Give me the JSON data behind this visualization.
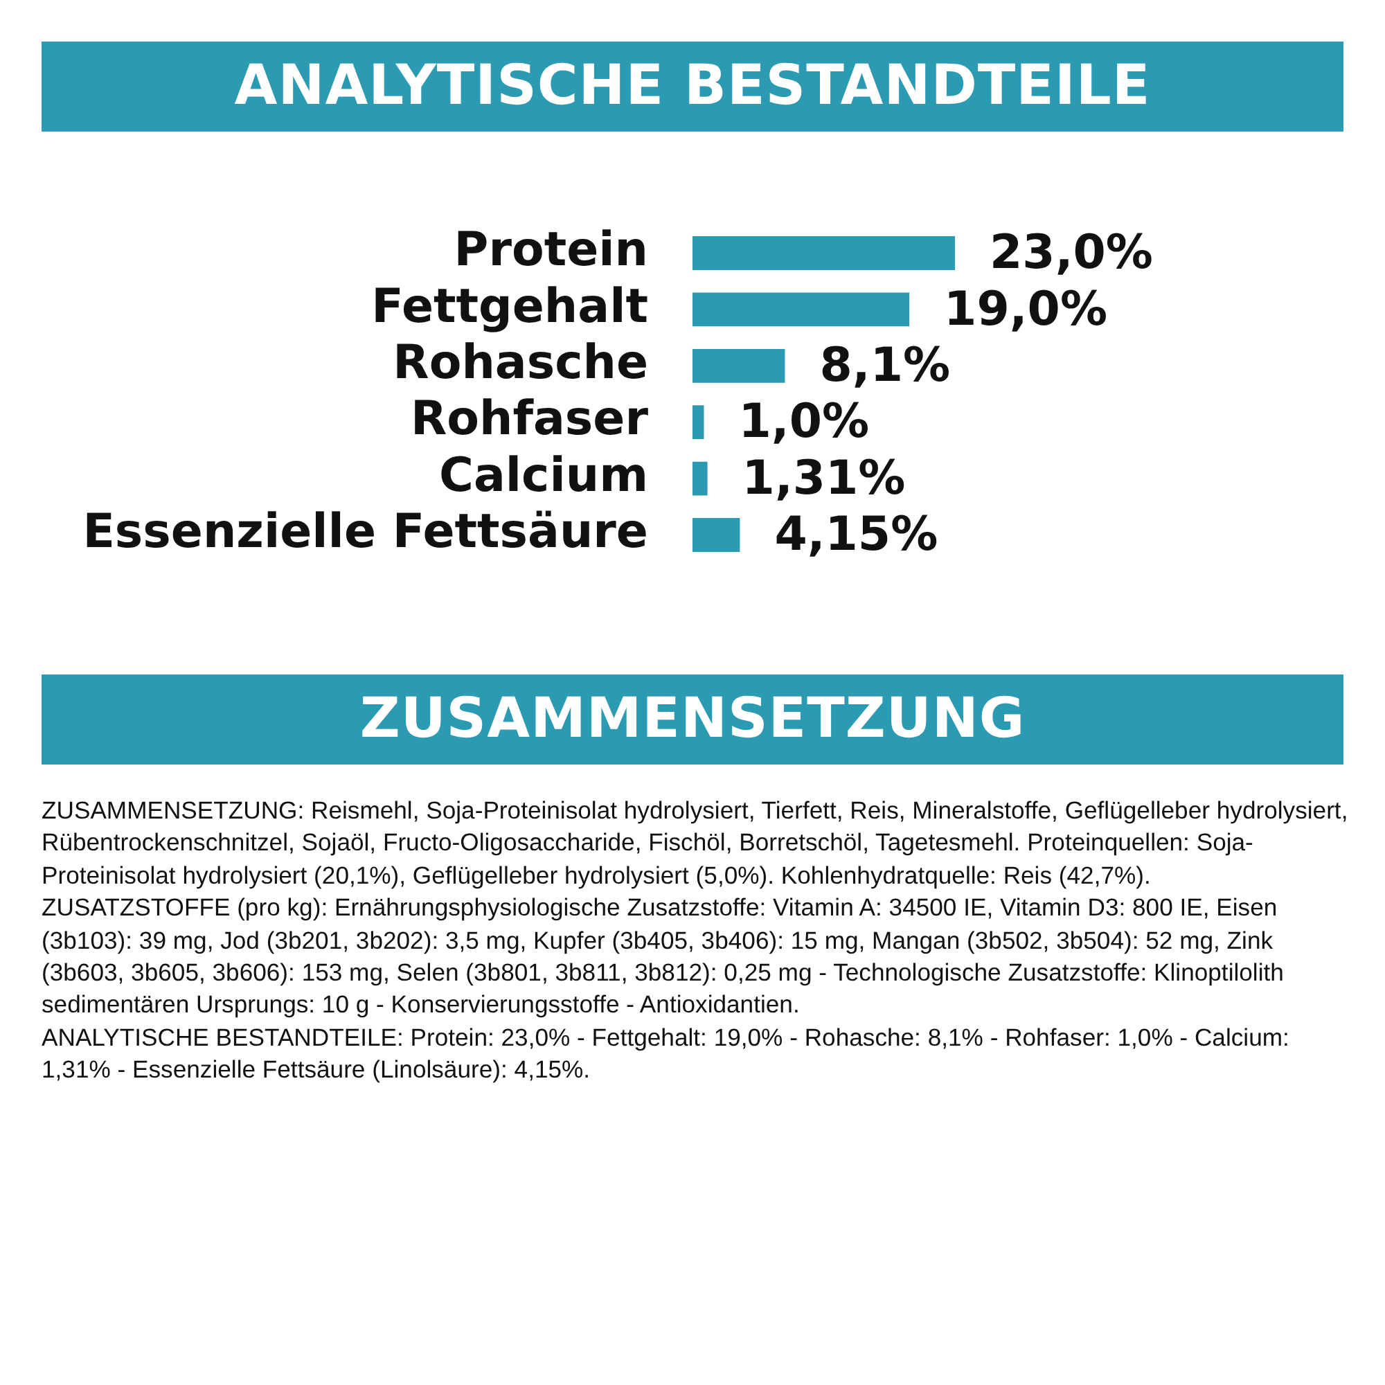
{
  "chart_data": {
    "type": "bar",
    "orientation": "horizontal",
    "title": "ANALYTISCHE BESTANDTEILE",
    "categories": [
      "Protein",
      "Fettgehalt",
      "Rohasche",
      "Rohfaser",
      "Calcium",
      "Essenzielle Fettsäure"
    ],
    "values": [
      23.0,
      19.0,
      8.1,
      1.0,
      1.31,
      4.15
    ],
    "value_labels": [
      "23,0%",
      "19,0%",
      "8,1%",
      "1,0%",
      "1,31%",
      "4,15%"
    ],
    "color": "#2b9ab3",
    "annotations": [
      "ZUSAMMENSETZUNG",
      "ZUSAMMENSETZUNG: Reismehl, Soja-Proteinisolat hydrolysiert, Tierfett, Reis, Mineralstoffe, Geflügelleber hydrolysiert, Rübentrockenschnitzel, Sojaöl, Fructo-Oligosaccharide, Fischöl, Borretschöl, Tagetesmehl. Proteinquellen: Soja-Proteinisolat hydrolysiert (20,1%), Geflügelleber hydrolysiert (5,0%). Kohlenhydratquelle: Reis (42,7%).",
      "ZUSATZSTOFFE (pro kg): Ernährungsphysiologische Zusatzstoffe: Vitamin A: 34500 IE, Vitamin D3: 800 IE, Eisen (3b103): 39 mg, Jod (3b201, 3b202): 3,5 mg, Kupfer (3b405, 3b406): 15 mg, Mangan (3b502, 3b504): 52 mg, Zink (3b603, 3b605, 3b606): 153 mg, Selen (3b801, 3b811, 3b812): 0,25 mg - Technologische Zusatzstoffe: Klinoptilolith sedimentären Ursprungs: 10 g - Konservierungsstoffe - Antioxidantien.",
      "ANALYTISCHE BESTANDTEILE: Protein: 23,0% - Fettgehalt: 19,0% - Rohasche: 8,1% - Rohfaser: 1,0% - Calcium: 1,31% - Essenzielle Fettsäure (Linolsäure): 4,15%."
    ]
  }
}
